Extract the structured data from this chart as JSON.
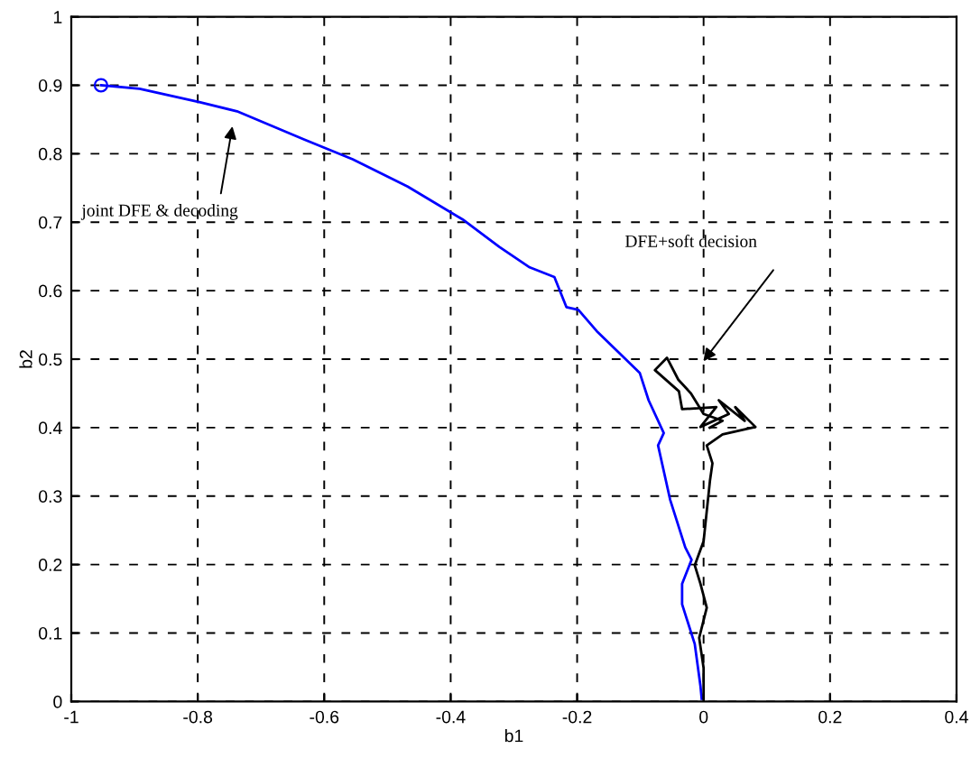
{
  "chart_data": {
    "type": "line",
    "xlabel": "b1",
    "ylabel": "b2",
    "xlim": [
      -1,
      0.4
    ],
    "ylim": [
      0,
      1
    ],
    "xticks": [
      -1,
      -0.8,
      -0.6,
      -0.4,
      -0.2,
      0,
      0.2,
      0.4
    ],
    "yticks": [
      0,
      0.1,
      0.2,
      0.3,
      0.4,
      0.5,
      0.6,
      0.7,
      0.8,
      0.9,
      1
    ],
    "grid": true,
    "line_style": "solid",
    "marker": "none",
    "series": [
      {
        "color": "#0000ff",
        "x": [
          -0.953,
          -0.892,
          -0.796,
          -0.738,
          -0.632,
          -0.555,
          -0.468,
          -0.381,
          -0.323,
          -0.275,
          -0.236,
          -0.217,
          -0.198,
          -0.169,
          -0.13,
          -0.101,
          -0.087,
          -0.063,
          -0.072,
          -0.053,
          -0.029,
          -0.019,
          -0.034,
          -0.034,
          -0.014,
          -0.005,
          -0.003
        ],
        "values": [
          0.9,
          0.895,
          0.875,
          0.862,
          0.821,
          0.792,
          0.752,
          0.704,
          0.664,
          0.634,
          0.62,
          0.576,
          0.572,
          0.541,
          0.506,
          0.48,
          0.44,
          0.392,
          0.374,
          0.295,
          0.225,
          0.207,
          0.172,
          0.142,
          0.084,
          0.023,
          0.004
        ]
      },
      {
        "color": "#000000",
        "x": [
          0.0,
          0.0,
          -0.007,
          0.005,
          -0.005,
          -0.014,
          0.0,
          0.005,
          0.01,
          0.014,
          0.005,
          0.03,
          0.082,
          0.05,
          0.065,
          0.024,
          0.04,
          -0.005,
          0.02,
          -0.034,
          -0.039,
          -0.077,
          -0.058,
          -0.04,
          -0.02,
          0.0,
          0.03,
          0.01
        ],
        "values": [
          0.004,
          0.049,
          0.093,
          0.137,
          0.172,
          0.199,
          0.234,
          0.278,
          0.322,
          0.348,
          0.374,
          0.39,
          0.401,
          0.43,
          0.41,
          0.44,
          0.42,
          0.401,
          0.43,
          0.427,
          0.453,
          0.484,
          0.502,
          0.47,
          0.45,
          0.42,
          0.41,
          0.4
        ]
      },
      {
        "type": "scatter",
        "color": "#0000ff",
        "marker": "circle",
        "x": [
          -0.953
        ],
        "values": [
          0.9
        ]
      }
    ],
    "annotations": [
      "joint DFE & decoding",
      "DFE+soft decision"
    ]
  }
}
